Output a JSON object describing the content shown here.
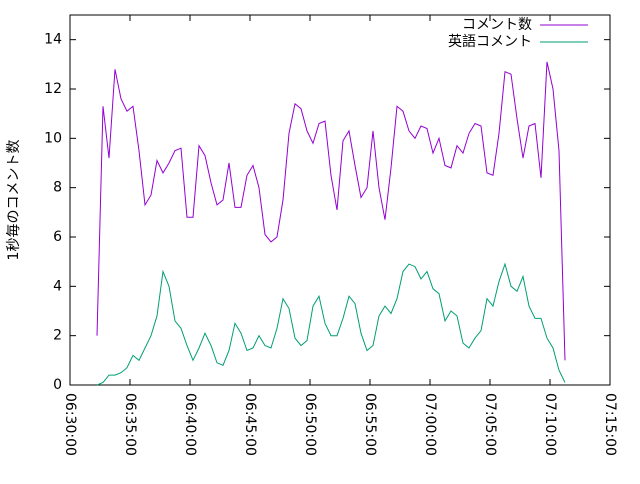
{
  "chart_data": {
    "type": "line",
    "ylabel": "1秒毎のコメント数",
    "x": [
      "06:32:15",
      "06:32:45",
      "06:33:15",
      "06:33:45",
      "06:34:15",
      "06:34:45",
      "06:35:15",
      "06:35:45",
      "06:36:15",
      "06:36:45",
      "06:37:15",
      "06:37:45",
      "06:38:15",
      "06:38:45",
      "06:39:15",
      "06:39:45",
      "06:40:15",
      "06:40:45",
      "06:41:15",
      "06:41:45",
      "06:42:15",
      "06:42:45",
      "06:43:15",
      "06:43:45",
      "06:44:15",
      "06:44:45",
      "06:45:15",
      "06:45:45",
      "06:46:15",
      "06:46:45",
      "06:47:15",
      "06:47:45",
      "06:48:15",
      "06:48:45",
      "06:49:15",
      "06:49:45",
      "06:50:15",
      "06:50:45",
      "06:51:15",
      "06:51:45",
      "06:52:15",
      "06:52:45",
      "06:53:15",
      "06:53:45",
      "06:54:15",
      "06:54:45",
      "06:55:15",
      "06:55:45",
      "06:56:15",
      "06:56:45",
      "06:57:15",
      "06:57:45",
      "06:58:15",
      "06:58:45",
      "06:59:15",
      "06:59:45",
      "07:00:15",
      "07:00:45",
      "07:01:15",
      "07:01:45",
      "07:02:15",
      "07:02:45",
      "07:03:15",
      "07:03:45",
      "07:04:15",
      "07:04:45",
      "07:05:15",
      "07:05:45",
      "07:06:15",
      "07:06:45",
      "07:07:15",
      "07:07:45",
      "07:08:15",
      "07:08:45",
      "07:09:15",
      "07:09:45",
      "07:10:15",
      "07:10:45",
      "07:11:15"
    ],
    "series": [
      {
        "name": "コメント数",
        "color": "#9400d3",
        "values": [
          2,
          11.3,
          9.2,
          12.8,
          11.6,
          11.1,
          11.3,
          9.5,
          7.3,
          7.7,
          9.1,
          8.6,
          9.0,
          9.5,
          9.6,
          6.8,
          6.8,
          9.7,
          9.3,
          8.2,
          7.3,
          7.5,
          9.0,
          7.2,
          7.2,
          8.5,
          8.9,
          8.0,
          6.1,
          5.8,
          6.0,
          7.5,
          10.2,
          11.4,
          11.2,
          10.3,
          9.8,
          10.6,
          10.7,
          8.5,
          7.1,
          9.9,
          10.3,
          8.9,
          7.6,
          8.0,
          10.3,
          8.0,
          6.7,
          8.8,
          11.3,
          11.1,
          10.3,
          10.0,
          10.5,
          10.4,
          9.4,
          10.0,
          8.9,
          8.8,
          9.7,
          9.4,
          10.2,
          10.6,
          10.5,
          8.6,
          8.5,
          10.2,
          12.7,
          12.6,
          10.8,
          9.2,
          10.5,
          10.6,
          8.4,
          13.1,
          12.0,
          9.5,
          1.0
        ]
      },
      {
        "name": "英語コメント",
        "color": "#009e73",
        "values": [
          0,
          0.1,
          0.4,
          0.4,
          0.5,
          0.7,
          1.2,
          1.0,
          1.5,
          2.0,
          2.8,
          4.6,
          4.0,
          2.6,
          2.3,
          1.6,
          1.0,
          1.5,
          2.1,
          1.6,
          0.9,
          0.8,
          1.4,
          2.5,
          2.1,
          1.4,
          1.5,
          2.0,
          1.6,
          1.5,
          2.3,
          3.5,
          3.1,
          1.9,
          1.6,
          1.8,
          3.2,
          3.6,
          2.5,
          2.0,
          2.0,
          2.7,
          3.6,
          3.3,
          2.1,
          1.4,
          1.6,
          2.8,
          3.2,
          2.9,
          3.5,
          4.6,
          4.9,
          4.8,
          4.3,
          4.6,
          3.9,
          3.7,
          2.6,
          3.0,
          2.8,
          1.7,
          1.5,
          1.9,
          2.2,
          3.5,
          3.2,
          4.2,
          4.9,
          4.0,
          3.8,
          4.4,
          3.2,
          2.7,
          2.7,
          1.9,
          1.5,
          0.6,
          0.1
        ]
      }
    ],
    "xlim": [
      "06:30:00",
      "07:15:00"
    ],
    "xticks": [
      "06:30:00",
      "06:35:00",
      "06:40:00",
      "06:45:00",
      "06:50:00",
      "06:55:00",
      "07:00:00",
      "07:05:00",
      "07:10:00",
      "07:15:00"
    ],
    "ylim": [
      0,
      15
    ],
    "yticks": [
      0,
      2,
      4,
      6,
      8,
      10,
      12,
      14
    ],
    "legend": "top-right"
  }
}
